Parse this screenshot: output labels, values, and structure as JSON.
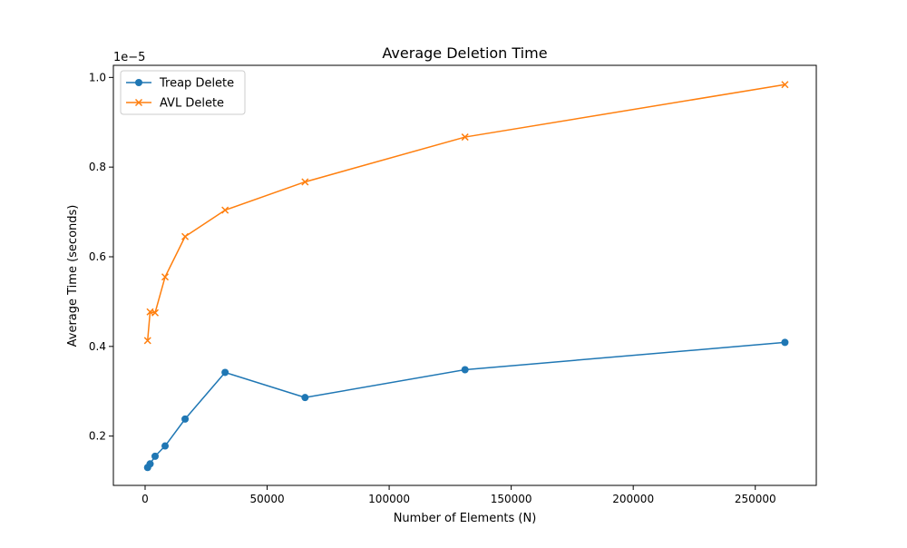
{
  "chart_data": {
    "type": "line",
    "title": "Average Deletion Time",
    "xlabel": "Number of Elements (N)",
    "ylabel": "Average Time (seconds)",
    "y_offset_label": "1e−5",
    "xlim": [
      -13000,
      275000
    ],
    "ylim": [
      9e-07,
      1.027e-05
    ],
    "x_ticks": [
      0,
      50000,
      100000,
      150000,
      200000,
      250000
    ],
    "x_tick_labels": [
      "0",
      "50000",
      "100000",
      "150000",
      "200000",
      "250000"
    ],
    "y_ticks": [
      2e-06,
      4e-06,
      6e-06,
      8e-06,
      1e-05
    ],
    "y_tick_labels": [
      "0.2",
      "0.4",
      "0.6",
      "0.8",
      "1.0"
    ],
    "grid": false,
    "legend_position": "top-left",
    "x": [
      1024,
      2048,
      4096,
      8192,
      16384,
      32768,
      65536,
      131072,
      262144
    ],
    "series": [
      {
        "name": "Treap Delete",
        "color": "#1f77b4",
        "marker": "circle",
        "values": [
          1.3e-06,
          1.38e-06,
          1.55e-06,
          1.78e-06,
          2.38e-06,
          3.42e-06,
          2.86e-06,
          3.48e-06,
          4.09e-06
        ]
      },
      {
        "name": "AVL Delete",
        "color": "#ff7f0e",
        "marker": "x",
        "values": [
          4.13e-06,
          4.77e-06,
          4.75e-06,
          5.55e-06,
          6.45e-06,
          7.04e-06,
          7.67e-06,
          8.67e-06,
          9.84e-06
        ]
      }
    ]
  }
}
